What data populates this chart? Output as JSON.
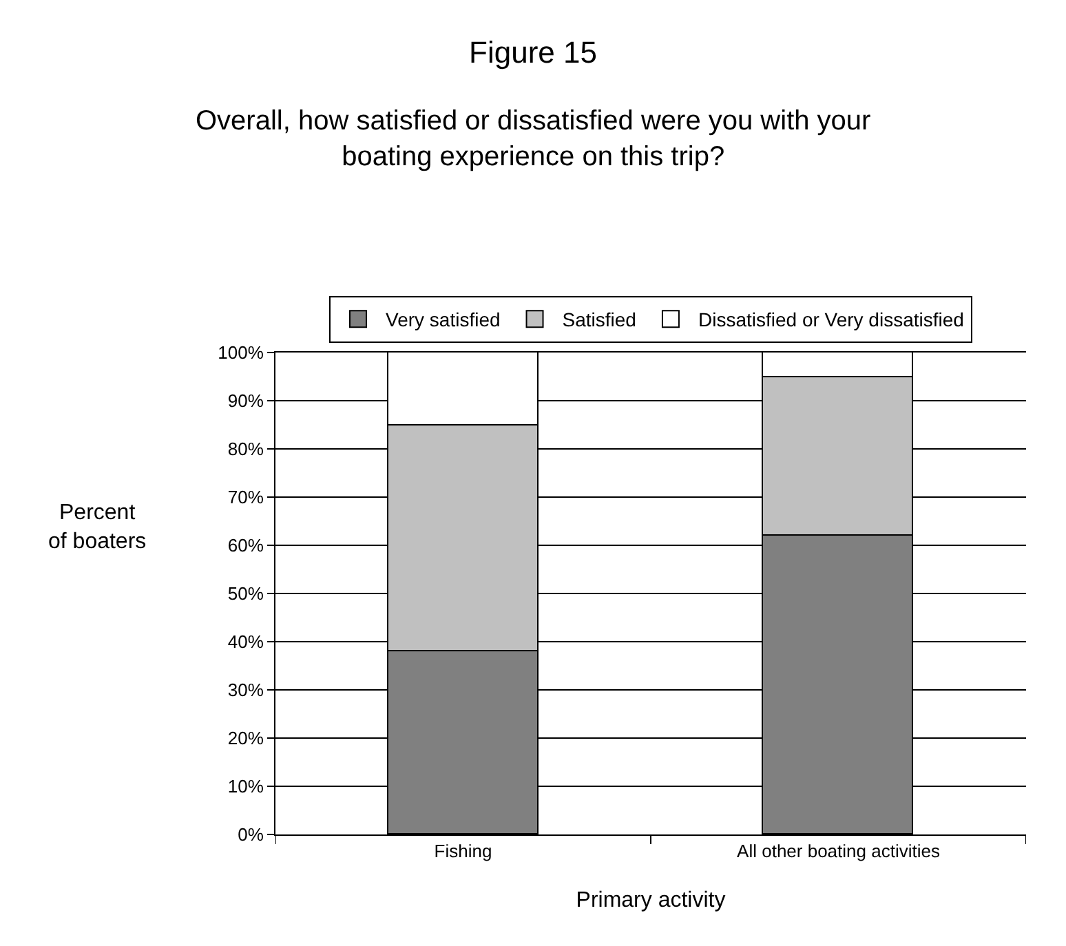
{
  "chart_data": {
    "type": "bar",
    "stacked": true,
    "title": "Figure 15",
    "subtitle": "Overall, how satisfied or dissatisfied were you with your\nboating experience on this trip?",
    "xlabel": "Primary activity",
    "ylabel": "Percent\nof boaters",
    "categories": [
      "Fishing",
      "All other boating activities"
    ],
    "series": [
      {
        "name": "Very satisfied",
        "color": "#808080",
        "values": [
          38,
          62
        ]
      },
      {
        "name": "Satisfied",
        "color": "#c0c0c0",
        "values": [
          47,
          33
        ]
      },
      {
        "name": "Dissatisfied or Very dissatisfied",
        "color": "#ffffff",
        "values": [
          15,
          5
        ]
      }
    ],
    "ylim": [
      0,
      100
    ],
    "yticks": [
      {
        "value": 0,
        "label": "0%"
      },
      {
        "value": 10,
        "label": "10%"
      },
      {
        "value": 20,
        "label": "20%"
      },
      {
        "value": 30,
        "label": "30%"
      },
      {
        "value": 40,
        "label": "40%"
      },
      {
        "value": 50,
        "label": "50%"
      },
      {
        "value": 60,
        "label": "60%"
      },
      {
        "value": 70,
        "label": "70%"
      },
      {
        "value": 80,
        "label": "80%"
      },
      {
        "value": 90,
        "label": "90%"
      },
      {
        "value": 100,
        "label": "100%"
      }
    ],
    "grid": "y",
    "legend": "top"
  }
}
